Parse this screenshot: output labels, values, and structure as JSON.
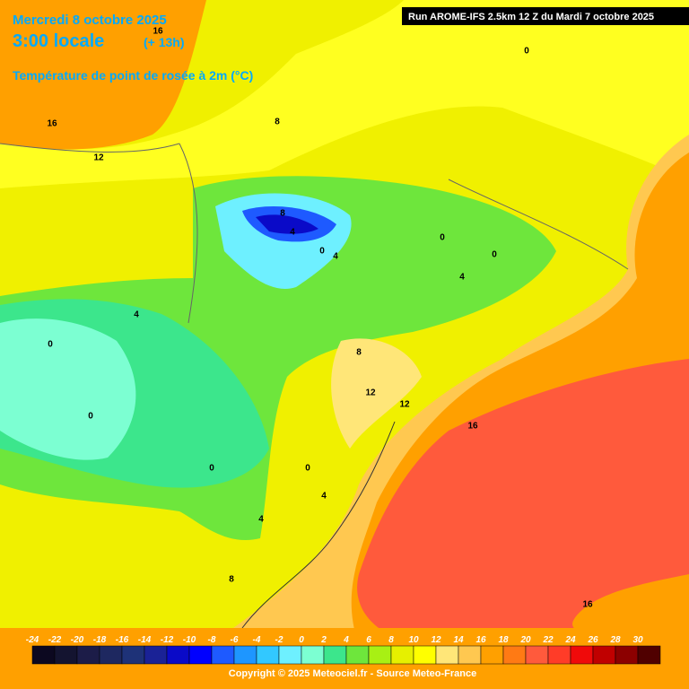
{
  "header": {
    "date": "Mercredi 8 octobre 2025",
    "time": "3:00 locale",
    "lead": "(+ 13h)",
    "parameter": "Température de point de rosée à 2m (°C)",
    "run": "Run AROME-IFS 2.5km 12 Z du Mardi 7 octobre 2025"
  },
  "contour_labels": [
    16,
    16,
    12,
    8,
    8,
    4,
    0,
    4,
    0,
    0,
    4,
    4,
    0,
    0,
    8,
    12,
    12,
    16,
    0,
    0,
    4,
    4,
    8,
    16,
    0
  ],
  "legend": {
    "labels": [
      -24,
      -22,
      -20,
      -18,
      -16,
      -14,
      -12,
      -10,
      -8,
      -6,
      -4,
      -2,
      0,
      2,
      4,
      6,
      8,
      10,
      12,
      14,
      16,
      18,
      20,
      22,
      24,
      26,
      28,
      30
    ],
    "colors": [
      "#0c0820",
      "#141430",
      "#1c1c48",
      "#1e2860",
      "#1e3278",
      "#1a2296",
      "#0a0ac8",
      "#0000ff",
      "#1e5aff",
      "#1e96ff",
      "#32c8ff",
      "#6ef0ff",
      "#7cffd2",
      "#3ce68c",
      "#6ee63c",
      "#a8f014",
      "#e6f000",
      "#ffff00",
      "#ffe678",
      "#ffc850",
      "#ffa000",
      "#ff7a14",
      "#ff5a3c",
      "#ff3c28",
      "#f00a0a",
      "#c00000",
      "#8c0000",
      "#500000"
    ]
  },
  "footer": {
    "copyright": "Copyright © 2025 Meteociel.fr - Source Meteo-France"
  }
}
